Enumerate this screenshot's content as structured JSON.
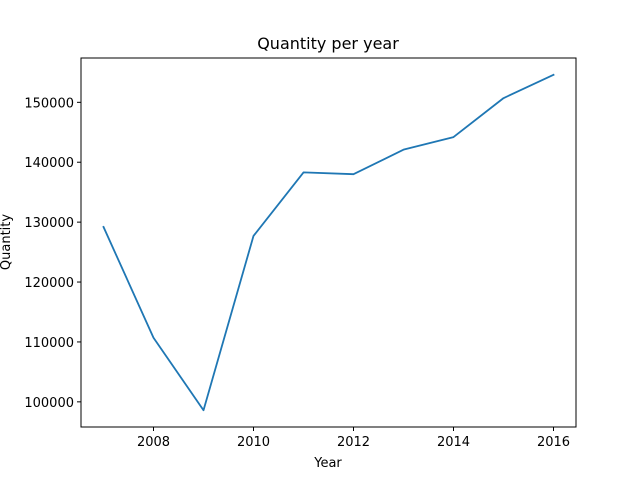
{
  "chart_data": {
    "type": "line",
    "title": "Quantity per year",
    "xlabel": "Year",
    "ylabel": "Quantity",
    "x": [
      2007,
      2008,
      2009,
      2010,
      2011,
      2012,
      2013,
      2014,
      2015,
      2016
    ],
    "series": [
      {
        "values": [
          129200,
          110700,
          98600,
          127700,
          138300,
          138000,
          142100,
          144200,
          150700,
          154600
        ],
        "color": "#1f77b4"
      }
    ],
    "xlim": [
      2006.55,
      2016.45
    ],
    "ylim": [
      95800,
      157400
    ],
    "xticks": [
      2008,
      2010,
      2012,
      2014,
      2016
    ],
    "yticks": [
      100000,
      110000,
      120000,
      130000,
      140000,
      150000
    ],
    "grid": false,
    "legend": "none"
  }
}
